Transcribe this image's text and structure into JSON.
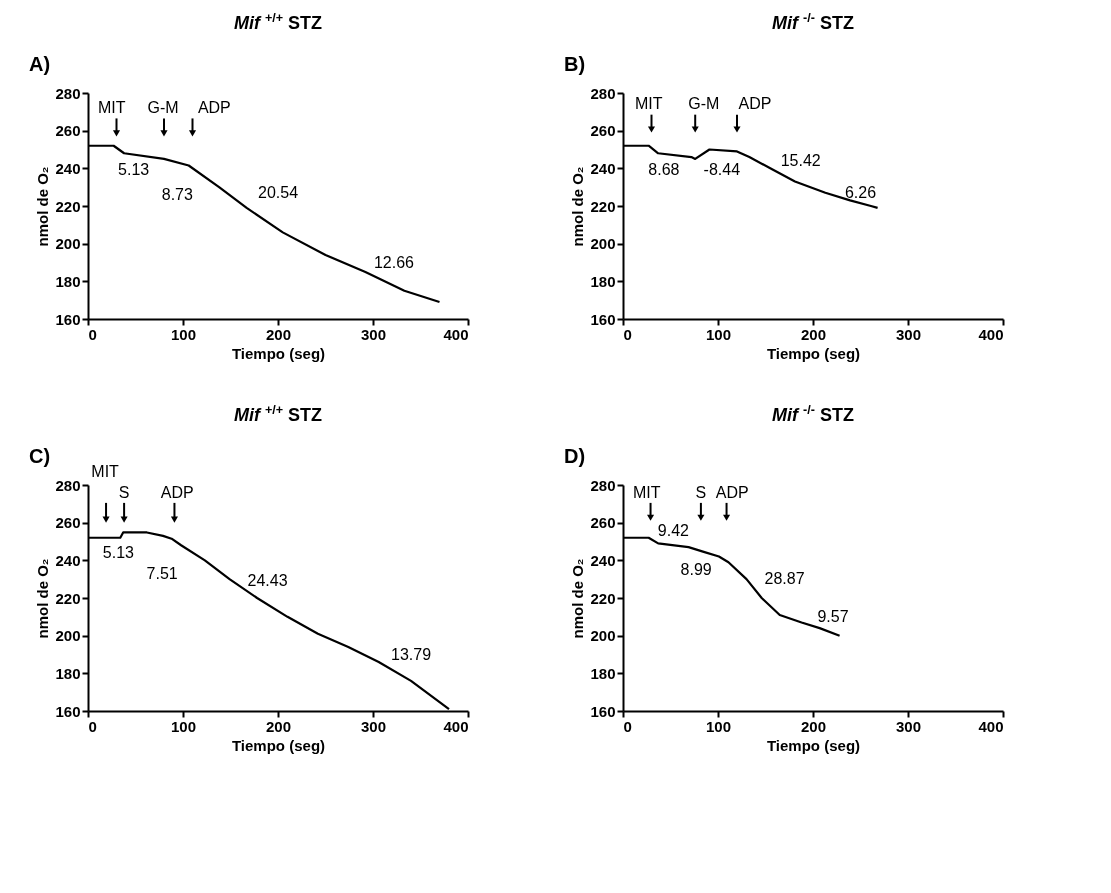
{
  "chart_data": [
    {
      "type": "line",
      "title": "Mif $^{+/+}$ STZ",
      "xlabel": "Tiempo (seg)",
      "ylabel": "nmol de O₂",
      "xlim": [
        0,
        400
      ],
      "xticks": [
        0,
        100,
        200,
        300,
        400
      ],
      "ylim": [
        160,
        280
      ],
      "yticks": [
        160,
        180,
        200,
        220,
        240,
        260,
        280
      ],
      "series": [
        {
          "color": "#000000",
          "x": [
            0,
            27,
            38,
            80,
            106,
            138,
            167,
            205,
            250,
            292,
            333,
            370
          ],
          "values": [
            252,
            252,
            248,
            245,
            241.5,
            230,
            219,
            206,
            194,
            185,
            175,
            169
          ]
        }
      ],
      "annotations": [
        "A)",
        "MIT",
        "G-M",
        "ADP",
        "5.13",
        "8.73",
        "20.54",
        "12.66"
      ]
    },
    {
      "type": "line",
      "title": "Mif $^{-/-}$ STZ",
      "xlabel": "Tiempo (seg)",
      "ylabel": "nmol de O₂",
      "xlim": [
        0,
        400
      ],
      "xticks": [
        0,
        100,
        200,
        300,
        400
      ],
      "ylim": [
        160,
        280
      ],
      "yticks": [
        160,
        180,
        200,
        220,
        240,
        260,
        280
      ],
      "series": [
        {
          "color": "#000000",
          "x": [
            0,
            27,
            37,
            72,
            76,
            91,
            120,
            133,
            155,
            181,
            213,
            239,
            261,
            268
          ],
          "values": [
            252,
            252,
            248,
            246,
            245,
            250,
            249,
            246,
            240,
            233,
            227,
            223,
            220,
            219
          ]
        }
      ],
      "annotations": [
        "B)",
        "MIT",
        "G-M",
        "ADP",
        "8.68",
        "-8.44",
        "15.42",
        "6.26"
      ]
    },
    {
      "type": "line",
      "title": "Mif $^{+/+}$ STZ",
      "xlabel": "Tiempo (seg)",
      "ylabel": "nmol de O₂",
      "xlim": [
        0,
        400
      ],
      "xticks": [
        0,
        100,
        200,
        300,
        400
      ],
      "ylim": [
        160,
        280
      ],
      "yticks": [
        160,
        180,
        200,
        220,
        240,
        260,
        280
      ],
      "series": [
        {
          "color": "#000000",
          "x": [
            0,
            34,
            37,
            62,
            79,
            88,
            98,
            123,
            149,
            178,
            210,
            242,
            274,
            306,
            340,
            380
          ],
          "values": [
            252,
            252,
            254.8,
            254.8,
            253,
            251.5,
            248,
            240,
            230,
            220,
            210,
            201,
            194,
            186,
            176,
            161
          ]
        }
      ],
      "annotations": [
        "C)",
        "MIT",
        "S",
        "ADP",
        "5.13",
        "7.51",
        "24.43",
        "13.79"
      ]
    },
    {
      "type": "line",
      "title": "Mif $^{-/-}$ STZ",
      "xlabel": "Tiempo (seg)",
      "ylabel": "nmol de O₂",
      "xlim": [
        0,
        400
      ],
      "xticks": [
        0,
        100,
        200,
        300,
        400
      ],
      "ylim": [
        160,
        280
      ],
      "yticks": [
        160,
        180,
        200,
        220,
        240,
        260,
        280
      ],
      "series": [
        {
          "color": "#000000",
          "x": [
            0,
            27,
            37,
            69,
            85,
            101,
            111,
            130,
            146,
            165,
            188,
            207,
            228
          ],
          "values": [
            252,
            252,
            249,
            247,
            244.5,
            242,
            239,
            230,
            220,
            211,
            207,
            204,
            200
          ]
        }
      ],
      "annotations": [
        "D)",
        "MIT",
        "S",
        "ADP",
        "9.42",
        "8.99",
        "28.87",
        "9.57"
      ]
    }
  ]
}
